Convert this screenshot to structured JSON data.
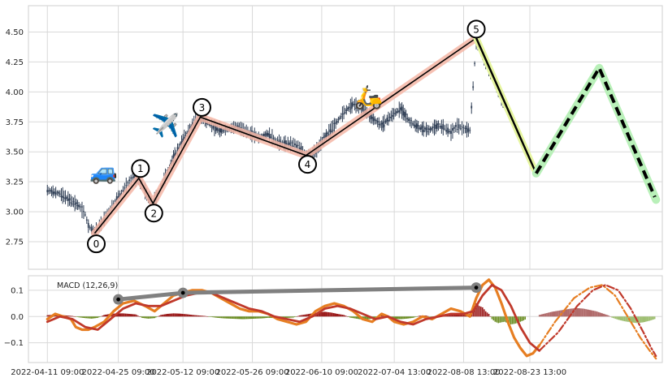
{
  "chart_data": [
    {
      "type": "line",
      "panel": "price",
      "y_ticks": [
        "2.75",
        "3.00",
        "3.25",
        "3.50",
        "3.75",
        "4.00",
        "4.25",
        "4.50"
      ],
      "ylim": [
        2.52,
        4.72
      ],
      "x_range": [
        -12,
        390
      ],
      "grid": true,
      "price_series": [
        [
          0,
          3.18
        ],
        [
          8,
          3.15
        ],
        [
          14,
          3.1
        ],
        [
          20,
          3.05
        ],
        [
          24,
          2.98
        ],
        [
          26,
          2.88
        ],
        [
          30,
          2.83
        ],
        [
          34,
          2.9
        ],
        [
          38,
          2.98
        ],
        [
          42,
          3.07
        ],
        [
          46,
          3.14
        ],
        [
          50,
          3.22
        ],
        [
          54,
          3.28
        ],
        [
          58,
          3.27
        ],
        [
          61,
          3.2
        ],
        [
          64,
          3.12
        ],
        [
          67,
          3.08
        ],
        [
          70,
          3.14
        ],
        [
          74,
          3.27
        ],
        [
          80,
          3.45
        ],
        [
          86,
          3.6
        ],
        [
          92,
          3.72
        ],
        [
          96,
          3.79
        ],
        [
          100,
          3.76
        ],
        [
          106,
          3.7
        ],
        [
          112,
          3.68
        ],
        [
          120,
          3.71
        ],
        [
          128,
          3.66
        ],
        [
          134,
          3.62
        ],
        [
          140,
          3.65
        ],
        [
          146,
          3.58
        ],
        [
          150,
          3.57
        ],
        [
          156,
          3.56
        ],
        [
          160,
          3.53
        ],
        [
          164,
          3.48
        ],
        [
          170,
          3.5
        ],
        [
          176,
          3.62
        ],
        [
          182,
          3.72
        ],
        [
          188,
          3.83
        ],
        [
          194,
          3.9
        ],
        [
          200,
          3.86
        ],
        [
          206,
          3.78
        ],
        [
          212,
          3.72
        ],
        [
          218,
          3.8
        ],
        [
          224,
          3.86
        ],
        [
          230,
          3.75
        ],
        [
          236,
          3.7
        ],
        [
          242,
          3.68
        ],
        [
          248,
          3.72
        ],
        [
          252,
          3.7
        ],
        [
          256,
          3.66
        ],
        [
          260,
          3.72
        ],
        [
          264,
          3.69
        ],
        [
          268,
          3.68
        ],
        [
          272,
          4.42
        ],
        [
          276,
          4.3
        ],
        [
          280,
          4.2
        ],
        [
          284,
          4.08
        ],
        [
          288,
          3.95
        ],
        [
          292,
          3.85
        ]
      ],
      "wave_points": [
        {
          "label": "0",
          "x": 30,
          "y": 2.82
        },
        {
          "label": "1",
          "x": 58,
          "y": 3.28
        },
        {
          "label": "2",
          "x": 67,
          "y": 3.07
        },
        {
          "label": "3",
          "x": 97,
          "y": 3.79
        },
        {
          "label": "4",
          "x": 164,
          "y": 3.47
        },
        {
          "label": "5",
          "x": 272,
          "y": 4.45
        }
      ],
      "projection_down": [
        [
          272,
          4.45
        ],
        [
          310,
          3.32
        ]
      ],
      "projection_zigzag": [
        [
          310,
          3.32
        ],
        [
          350,
          4.2
        ],
        [
          386,
          3.1
        ]
      ],
      "icons": [
        "car-icon",
        "airplane-icon",
        "scooter-icon"
      ]
    },
    {
      "type": "bar",
      "panel": "macd",
      "label": "MACD (12,26,9)",
      "y_ticks": [
        "−0.1",
        "0.0",
        "0.1"
      ],
      "ylim": [
        -0.175,
        0.155
      ],
      "x_labels": [
        "2022-04-11 09:00",
        "2022-04-25 09:00",
        "2022-05-12 09:00",
        "2022-05-26 09:00",
        "2022-06-10 09:00",
        "2022-07-04 13:00",
        "2022-08-08 13:00",
        "2022-08-23 13:00"
      ],
      "x_label_positions": [
        0,
        45,
        86,
        130,
        174,
        220,
        264,
        306
      ],
      "macd_line": [
        [
          0,
          -0.01
        ],
        [
          5,
          0.01
        ],
        [
          10,
          0.0
        ],
        [
          15,
          -0.01
        ],
        [
          18,
          -0.04
        ],
        [
          22,
          -0.05
        ],
        [
          26,
          -0.05
        ],
        [
          30,
          -0.04
        ],
        [
          36,
          -0.02
        ],
        [
          42,
          0.02
        ],
        [
          48,
          0.05
        ],
        [
          55,
          0.06
        ],
        [
          62,
          0.04
        ],
        [
          68,
          0.02
        ],
        [
          74,
          0.05
        ],
        [
          80,
          0.08
        ],
        [
          86,
          0.09
        ],
        [
          92,
          0.1
        ],
        [
          98,
          0.1
        ],
        [
          104,
          0.09
        ],
        [
          110,
          0.07
        ],
        [
          116,
          0.05
        ],
        [
          122,
          0.03
        ],
        [
          128,
          0.02
        ],
        [
          134,
          0.02
        ],
        [
          140,
          0.01
        ],
        [
          146,
          -0.01
        ],
        [
          152,
          -0.02
        ],
        [
          158,
          -0.03
        ],
        [
          164,
          -0.02
        ],
        [
          170,
          0.02
        ],
        [
          176,
          0.04
        ],
        [
          182,
          0.05
        ],
        [
          188,
          0.04
        ],
        [
          194,
          0.02
        ],
        [
          200,
          -0.01
        ],
        [
          206,
          -0.02
        ],
        [
          212,
          0.01
        ],
        [
          216,
          0.0
        ],
        [
          220,
          -0.02
        ],
        [
          226,
          -0.03
        ],
        [
          232,
          -0.02
        ],
        [
          238,
          0.0
        ],
        [
          244,
          -0.01
        ],
        [
          250,
          0.01
        ],
        [
          256,
          0.03
        ],
        [
          262,
          0.02
        ],
        [
          268,
          0.0
        ],
        [
          272,
          0.07
        ],
        [
          276,
          0.12
        ],
        [
          280,
          0.14
        ],
        [
          284,
          0.11
        ],
        [
          288,
          0.05
        ],
        [
          292,
          -0.02
        ],
        [
          296,
          -0.08
        ],
        [
          300,
          -0.12
        ],
        [
          304,
          -0.15
        ],
        [
          308,
          -0.14
        ],
        [
          312,
          -0.11
        ]
      ],
      "signal_line": [
        [
          0,
          -0.02
        ],
        [
          8,
          0.0
        ],
        [
          16,
          -0.01
        ],
        [
          24,
          -0.04
        ],
        [
          32,
          -0.05
        ],
        [
          40,
          -0.01
        ],
        [
          48,
          0.03
        ],
        [
          56,
          0.05
        ],
        [
          64,
          0.04
        ],
        [
          72,
          0.04
        ],
        [
          80,
          0.06
        ],
        [
          88,
          0.08
        ],
        [
          96,
          0.09
        ],
        [
          104,
          0.09
        ],
        [
          112,
          0.07
        ],
        [
          120,
          0.05
        ],
        [
          128,
          0.03
        ],
        [
          136,
          0.02
        ],
        [
          144,
          0.0
        ],
        [
          152,
          -0.01
        ],
        [
          160,
          -0.02
        ],
        [
          168,
          0.0
        ],
        [
          176,
          0.03
        ],
        [
          184,
          0.04
        ],
        [
          192,
          0.03
        ],
        [
          200,
          0.01
        ],
        [
          208,
          -0.01
        ],
        [
          216,
          0.0
        ],
        [
          224,
          -0.02
        ],
        [
          232,
          -0.03
        ],
        [
          240,
          -0.01
        ],
        [
          248,
          0.0
        ],
        [
          256,
          0.01
        ],
        [
          264,
          0.01
        ],
        [
          270,
          0.02
        ],
        [
          276,
          0.08
        ],
        [
          282,
          0.12
        ],
        [
          288,
          0.1
        ],
        [
          294,
          0.04
        ],
        [
          300,
          -0.04
        ],
        [
          306,
          -0.1
        ],
        [
          312,
          -0.13
        ]
      ],
      "macd_projection": [
        [
          312,
          -0.11
        ],
        [
          322,
          -0.02
        ],
        [
          334,
          0.07
        ],
        [
          344,
          0.11
        ],
        [
          352,
          0.12
        ],
        [
          360,
          0.08
        ],
        [
          368,
          0.0
        ],
        [
          376,
          -0.08
        ],
        [
          382,
          -0.13
        ],
        [
          386,
          -0.16
        ]
      ],
      "signal_projection": [
        [
          312,
          -0.13
        ],
        [
          324,
          -0.06
        ],
        [
          336,
          0.04
        ],
        [
          346,
          0.1
        ],
        [
          354,
          0.12
        ],
        [
          362,
          0.1
        ],
        [
          370,
          0.03
        ],
        [
          378,
          -0.06
        ],
        [
          383,
          -0.12
        ],
        [
          386,
          -0.15
        ]
      ],
      "histogram": [
        [
          0,
          0.005
        ],
        [
          4,
          0.007
        ],
        [
          8,
          0.006
        ],
        [
          12,
          0.004
        ],
        [
          16,
          0.002
        ],
        [
          20,
          -0.003
        ],
        [
          24,
          -0.006
        ],
        [
          28,
          -0.008
        ],
        [
          32,
          -0.005
        ],
        [
          36,
          0.006
        ],
        [
          40,
          0.01
        ],
        [
          44,
          0.012
        ],
        [
          48,
          0.012
        ],
        [
          52,
          0.01
        ],
        [
          56,
          0.008
        ],
        [
          60,
          -0.005
        ],
        [
          64,
          -0.008
        ],
        [
          68,
          -0.006
        ],
        [
          72,
          0.006
        ],
        [
          76,
          0.01
        ],
        [
          80,
          0.012
        ],
        [
          84,
          0.011
        ],
        [
          88,
          0.009
        ],
        [
          92,
          0.006
        ],
        [
          96,
          0.004
        ],
        [
          100,
          0.002
        ],
        [
          104,
          -0.002
        ],
        [
          108,
          -0.005
        ],
        [
          112,
          -0.007
        ],
        [
          116,
          -0.008
        ],
        [
          120,
          -0.009
        ],
        [
          124,
          -0.01
        ],
        [
          128,
          -0.009
        ],
        [
          132,
          -0.008
        ],
        [
          136,
          -0.007
        ],
        [
          140,
          -0.005
        ],
        [
          144,
          -0.006
        ],
        [
          148,
          -0.007
        ],
        [
          152,
          -0.005
        ],
        [
          156,
          -0.004
        ],
        [
          160,
          0.004
        ],
        [
          164,
          0.008
        ],
        [
          168,
          0.012
        ],
        [
          172,
          0.016
        ],
        [
          176,
          0.018
        ],
        [
          180,
          0.015
        ],
        [
          184,
          0.01
        ],
        [
          188,
          0.006
        ],
        [
          192,
          -0.004
        ],
        [
          196,
          -0.008
        ],
        [
          200,
          -0.012
        ],
        [
          204,
          -0.01
        ],
        [
          208,
          -0.006
        ],
        [
          212,
          0.004
        ],
        [
          216,
          -0.004
        ],
        [
          220,
          -0.008
        ],
        [
          224,
          -0.01
        ],
        [
          228,
          -0.008
        ],
        [
          232,
          -0.005
        ],
        [
          236,
          0.003
        ],
        [
          240,
          0.004
        ],
        [
          244,
          -0.003
        ],
        [
          248,
          0.004
        ],
        [
          252,
          0.008
        ],
        [
          256,
          0.01
        ],
        [
          260,
          0.008
        ],
        [
          264,
          0.006
        ],
        [
          268,
          0.01
        ],
        [
          270,
          0.03
        ],
        [
          272,
          0.05
        ],
        [
          274,
          0.04
        ],
        [
          276,
          0.035
        ],
        [
          278,
          0.02
        ],
        [
          280,
          0.01
        ],
        [
          282,
          -0.01
        ],
        [
          284,
          -0.02
        ],
        [
          286,
          -0.025
        ],
        [
          288,
          -0.022
        ],
        [
          290,
          -0.02
        ],
        [
          292,
          -0.025
        ],
        [
          294,
          -0.03
        ],
        [
          296,
          -0.028
        ],
        [
          298,
          -0.025
        ],
        [
          300,
          -0.02
        ],
        [
          302,
          -0.015
        ],
        [
          304,
          -0.008
        ]
      ],
      "histogram_projection": [
        [
          312,
          0.006
        ],
        [
          316,
          0.012
        ],
        [
          320,
          0.018
        ],
        [
          324,
          0.022
        ],
        [
          328,
          0.026
        ],
        [
          332,
          0.03
        ],
        [
          336,
          0.032
        ],
        [
          340,
          0.03
        ],
        [
          344,
          0.025
        ],
        [
          348,
          0.02
        ],
        [
          352,
          0.012
        ],
        [
          356,
          0.004
        ],
        [
          358,
          -0.004
        ],
        [
          362,
          -0.012
        ],
        [
          366,
          -0.018
        ],
        [
          370,
          -0.022
        ],
        [
          374,
          -0.025
        ],
        [
          378,
          -0.022
        ],
        [
          382,
          -0.016
        ],
        [
          386,
          -0.008
        ]
      ],
      "trend_nodes": [
        {
          "x": 45,
          "y": 0.065
        },
        {
          "x": 86,
          "y": 0.09
        },
        {
          "x": 272,
          "y": 0.11
        }
      ],
      "colors": {
        "macd": "#e67e22",
        "signal": "#c0392b",
        "hist_positive": "#9b1c1c",
        "hist_negative": "#6b8e23",
        "hist_proj_positive": "#b06a6a",
        "hist_proj_negative": "#9fbf72"
      }
    }
  ],
  "colors": {
    "wave_band": "#f4b6a6",
    "wave_line": "#000000",
    "down_highlight": "#e6f5a0",
    "zigzag_band": "#b9f0b9",
    "candles": "#2f3e55",
    "grid": "#d9d9d9",
    "frame": "#cfcfcf",
    "trend_line": "#808080"
  }
}
